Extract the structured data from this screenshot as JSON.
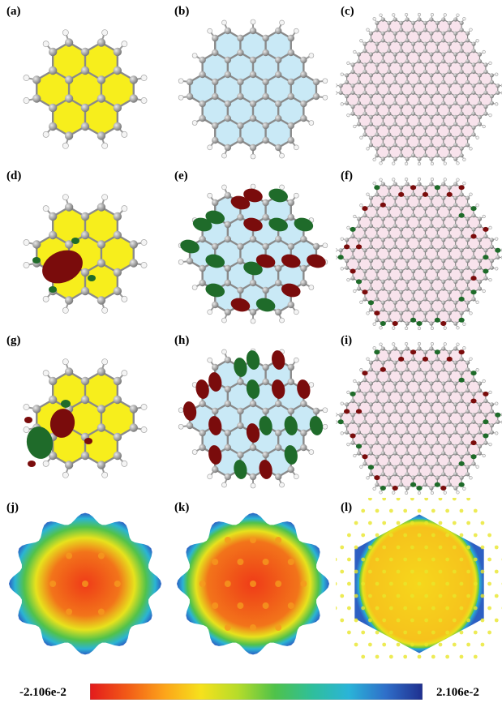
{
  "panels": [
    {
      "label": "(a)",
      "kind": "structure",
      "size": 2,
      "fill": "#f7ee1c",
      "orbital": "none"
    },
    {
      "label": "(b)",
      "kind": "structure",
      "size": 3,
      "fill": "#c9e9f6",
      "orbital": "none"
    },
    {
      "label": "(c)",
      "kind": "structure",
      "size": 7,
      "fill": "#f8e3ec",
      "orbital": "none"
    },
    {
      "label": "(d)",
      "kind": "structure",
      "size": 2,
      "fill": "#f7ee1c",
      "orbital": "homo-small"
    },
    {
      "label": "(e)",
      "kind": "structure",
      "size": 3,
      "fill": "#c9e9f6",
      "orbital": "homo-mid"
    },
    {
      "label": "(f)",
      "kind": "structure",
      "size": 7,
      "fill": "#f8e3ec",
      "orbital": "edge"
    },
    {
      "label": "(g)",
      "kind": "structure",
      "size": 2,
      "fill": "#f7ee1c",
      "orbital": "lumo-small"
    },
    {
      "label": "(h)",
      "kind": "structure",
      "size": 3,
      "fill": "#c9e9f6",
      "orbital": "lumo-mid"
    },
    {
      "label": "(i)",
      "kind": "structure",
      "size": 7,
      "fill": "#f8e3ec",
      "orbital": "edge2"
    },
    {
      "label": "(j)",
      "kind": "esp",
      "size": 2
    },
    {
      "label": "(k)",
      "kind": "esp",
      "size": 3
    },
    {
      "label": "(l)",
      "kind": "esp",
      "size": 7
    }
  ],
  "colorbar": {
    "min_label": "-2.106e-2",
    "max_label": "2.106e-2",
    "colors": [
      "#e31a1c",
      "#f25a17",
      "#fca31a",
      "#f6e11c",
      "#b6dc2a",
      "#4fc24a",
      "#2fbf9a",
      "#2ab4d8",
      "#2f6fc9",
      "#1f2f8f"
    ]
  },
  "orbital_colors": {
    "positive": "#7a0c0c",
    "negative": "#1f6b2a"
  }
}
